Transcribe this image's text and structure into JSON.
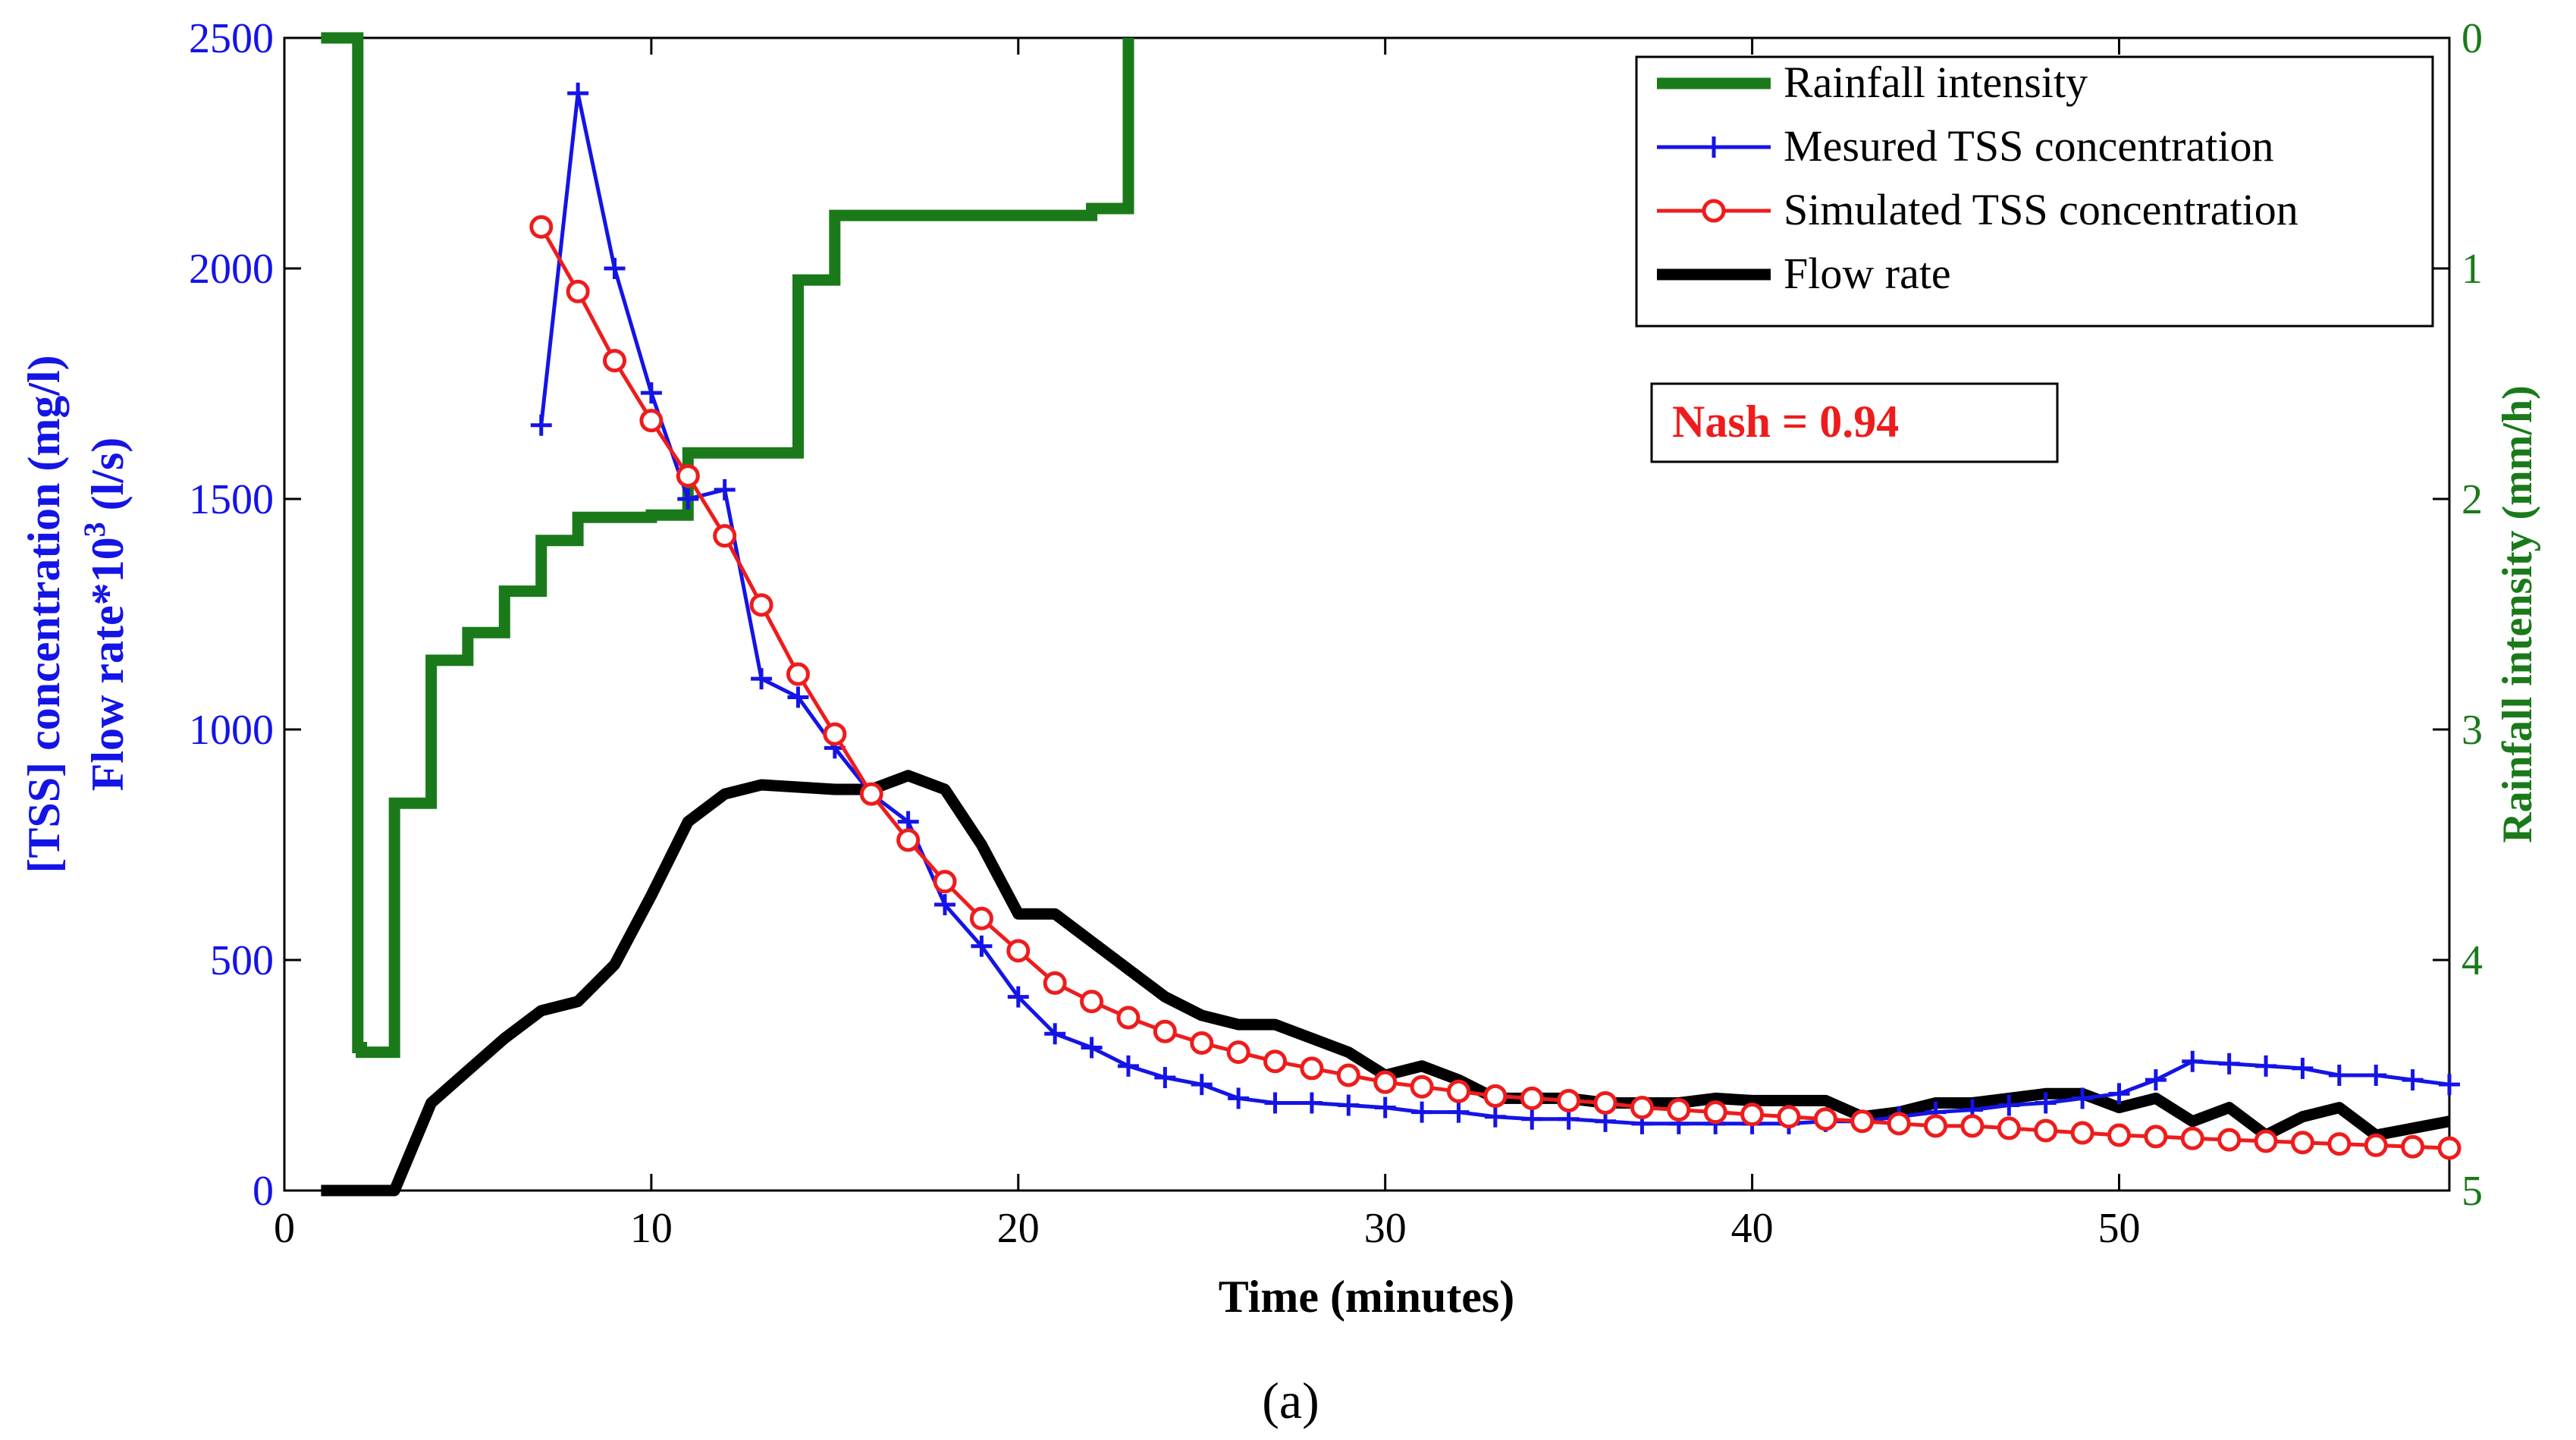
{
  "figure": {
    "panel_label": "(a)",
    "annotation": "Nash = 0.94"
  },
  "colors": {
    "rainfall": "#1a7a1a",
    "measured": "#1414e6",
    "simulated": "#ee1c1c",
    "flow": "#000000",
    "left_axis_text": "#1414e6",
    "right_axis_text": "#1a7a1a",
    "annotation_text": "#ee1c1c"
  },
  "chart_data": {
    "type": "line",
    "title": "",
    "xlabel": "Time (minutes)",
    "ylabel": "[TSS] concentration (mg/l)",
    "ylabel2": "Flow rate*10",
    "ylabel2_superscript": "3",
    "ylabel2_unit": " (l/s)",
    "y2label": "Rainfall intensity (mm/h)",
    "xlim": [
      0,
      59
    ],
    "ylim": [
      0,
      2500
    ],
    "y2lim": [
      0,
      5
    ],
    "y2_reversed": true,
    "grid": false,
    "legend_position": "top-right",
    "x_ticks": [
      0,
      10,
      20,
      30,
      40,
      50
    ],
    "y_ticks": [
      0,
      500,
      1000,
      1500,
      2000,
      2500
    ],
    "y2_ticks": [
      0,
      1,
      2,
      3,
      4,
      5
    ],
    "series": [
      {
        "name": "Rainfall intensity",
        "axis": "right",
        "style": "step",
        "marker": "none",
        "x": [
          1,
          2,
          2,
          2.1,
          2.1,
          3,
          3,
          4,
          4,
          5,
          5,
          6,
          6,
          7,
          7,
          8,
          8,
          10,
          10,
          11,
          11,
          14,
          14,
          15,
          15,
          22,
          22,
          23,
          23
        ],
        "y": [
          0,
          0,
          4.38,
          4.38,
          4.4,
          4.4,
          3.32,
          3.32,
          2.7,
          2.7,
          2.58,
          2.58,
          2.4,
          2.4,
          2.18,
          2.18,
          2.08,
          2.08,
          2.07,
          2.07,
          1.8,
          1.8,
          1.05,
          1.05,
          0.77,
          0.77,
          0.74,
          0.74,
          0
        ]
      },
      {
        "name": "Mesured TSS concentration",
        "axis": "left",
        "marker": "+",
        "x": [
          7,
          8,
          9,
          10,
          11,
          12,
          13,
          14,
          15,
          16,
          17,
          18,
          19,
          20,
          21,
          22,
          23,
          24,
          25,
          26,
          27,
          28,
          29,
          30,
          31,
          32,
          33,
          34,
          35,
          36,
          37,
          38,
          39,
          40,
          41,
          42,
          43,
          44,
          45,
          46,
          47,
          48,
          49,
          50,
          51,
          52,
          53,
          54,
          55,
          56,
          57,
          58,
          59
        ],
        "y": [
          1660,
          2380,
          2000,
          1730,
          1500,
          1520,
          1110,
          1070,
          960,
          860,
          800,
          620,
          530,
          420,
          340,
          310,
          270,
          245,
          230,
          200,
          190,
          190,
          185,
          180,
          170,
          170,
          160,
          155,
          155,
          150,
          145,
          145,
          145,
          145,
          145,
          150,
          150,
          160,
          170,
          175,
          185,
          190,
          200,
          210,
          240,
          280,
          275,
          270,
          265,
          250,
          250,
          240,
          230
        ]
      },
      {
        "name": "Simulated TSS concentration",
        "axis": "left",
        "marker": "o",
        "x": [
          7,
          8,
          9,
          10,
          11,
          12,
          13,
          14,
          15,
          16,
          17,
          18,
          19,
          20,
          21,
          22,
          23,
          24,
          25,
          26,
          27,
          28,
          29,
          30,
          31,
          32,
          33,
          34,
          35,
          36,
          37,
          38,
          39,
          40,
          41,
          42,
          43,
          44,
          45,
          46,
          47,
          48,
          49,
          50,
          51,
          52,
          53,
          54,
          55,
          56,
          57,
          58,
          59
        ],
        "y": [
          2090,
          1950,
          1800,
          1670,
          1550,
          1420,
          1270,
          1120,
          990,
          860,
          760,
          670,
          590,
          520,
          450,
          410,
          375,
          345,
          320,
          300,
          280,
          265,
          250,
          235,
          225,
          215,
          205,
          200,
          195,
          190,
          180,
          175,
          170,
          165,
          160,
          155,
          150,
          145,
          140,
          140,
          135,
          130,
          125,
          120,
          117,
          113,
          110,
          107,
          104,
          101,
          98,
          95,
          92
        ]
      },
      {
        "name": "Flow rate",
        "axis": "left",
        "marker": "none",
        "x": [
          1,
          2,
          3,
          4,
          5,
          6,
          7,
          8,
          9,
          10,
          11,
          12,
          13,
          14,
          15,
          16,
          17,
          18,
          19,
          20,
          21,
          22,
          23,
          24,
          25,
          26,
          27,
          28,
          29,
          30,
          31,
          32,
          33,
          34,
          35,
          36,
          37,
          38,
          39,
          40,
          41,
          42,
          43,
          44,
          45,
          46,
          47,
          48,
          49,
          50,
          51,
          52,
          53,
          54,
          55,
          56,
          57,
          58,
          59
        ],
        "y": [
          0,
          0,
          0,
          190,
          260,
          330,
          390,
          410,
          490,
          640,
          800,
          860,
          880,
          875,
          870,
          870,
          900,
          870,
          750,
          600,
          600,
          540,
          480,
          420,
          380,
          360,
          360,
          330,
          300,
          250,
          270,
          240,
          200,
          200,
          200,
          190,
          190,
          190,
          200,
          195,
          195,
          195,
          160,
          170,
          190,
          190,
          200,
          210,
          210,
          180,
          200,
          150,
          180,
          120,
          160,
          180,
          120,
          135,
          150
        ]
      }
    ]
  }
}
